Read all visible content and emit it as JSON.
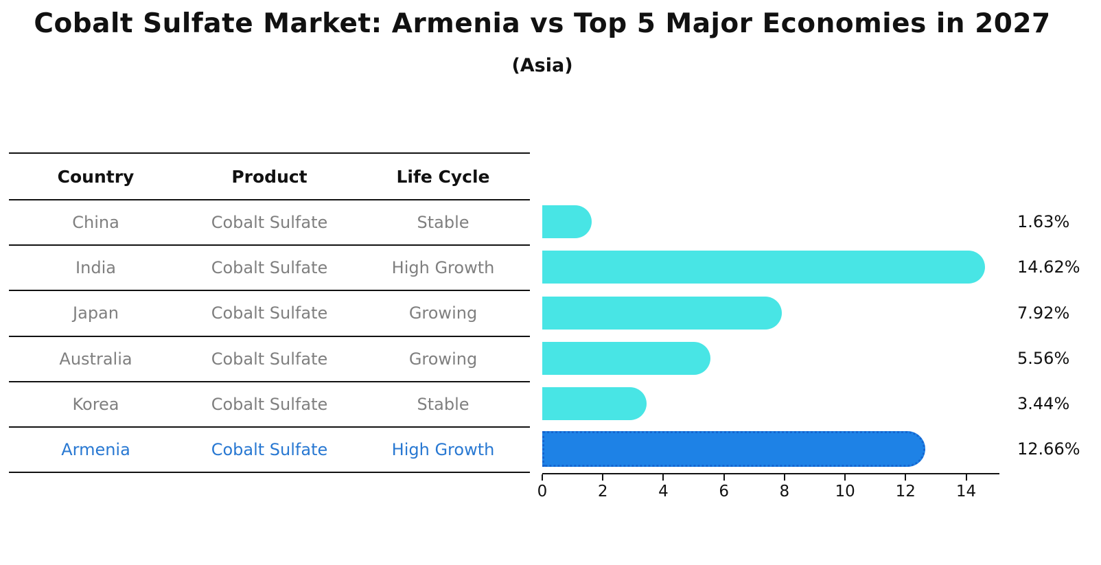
{
  "chart_data": {
    "type": "bar",
    "orientation": "horizontal",
    "title": "Cobalt Sulfate Market: Armenia vs Top 5 Major Economies in 2027",
    "subtitle": "(Asia)",
    "categories": [
      "China",
      "India",
      "Japan",
      "Australia",
      "Korea",
      "Armenia"
    ],
    "values": [
      1.63,
      14.62,
      7.92,
      5.56,
      3.44,
      12.66
    ],
    "value_labels": [
      "1.63%",
      "14.62%",
      "7.92%",
      "5.56%",
      "3.44%",
      "12.66%"
    ],
    "unit": "%",
    "x_ticks": [
      0,
      2,
      4,
      6,
      8,
      10,
      12,
      14
    ],
    "xlim": [
      0,
      15.1
    ],
    "grid": false,
    "legend": "none",
    "highlight_category": "Armenia"
  },
  "table": {
    "headers": [
      "Country",
      "Product",
      "Life Cycle"
    ],
    "rows": [
      {
        "country": "China",
        "product": "Cobalt Sulfate",
        "life_cycle": "Stable",
        "highlight": false
      },
      {
        "country": "India",
        "product": "Cobalt Sulfate",
        "life_cycle": "High Growth",
        "highlight": false
      },
      {
        "country": "Japan",
        "product": "Cobalt Sulfate",
        "life_cycle": "Growing",
        "highlight": false
      },
      {
        "country": "Australia",
        "product": "Cobalt Sulfate",
        "life_cycle": "Growing",
        "highlight": false
      },
      {
        "country": "Korea",
        "product": "Cobalt Sulfate",
        "life_cycle": "Stable",
        "highlight": false
      },
      {
        "country": "Armenia",
        "product": "Cobalt Sulfate",
        "life_cycle": "High Growth",
        "highlight": true
      }
    ]
  },
  "colors": {
    "bar": "#48E5E5",
    "highlight_bar": "#1E82E6",
    "highlight_border": "#1565CF",
    "highlight_text": "#2878D2",
    "muted_text": "#7F7F7F",
    "text": "#111111",
    "background": "#FFFFFF"
  }
}
